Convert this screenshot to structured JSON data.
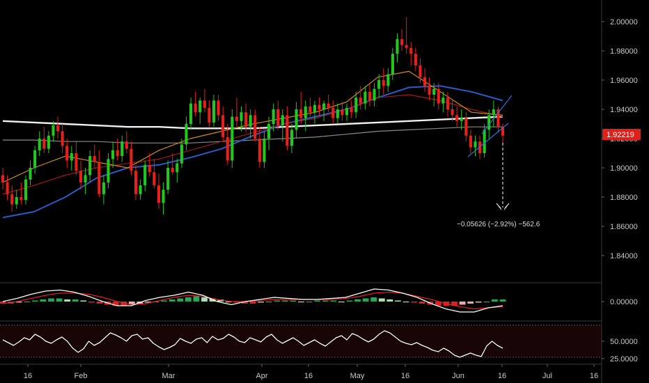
{
  "chart_data": [
    {
      "type": "candlestick",
      "panel": "price",
      "ylim": [
        1.82,
        2.01
      ],
      "y_ticks": [
        "2.00000",
        "1.98000",
        "1.96000",
        "1.94000",
        "1.92000",
        "1.90000",
        "1.88000",
        "1.86000",
        "1.84000"
      ],
      "x_ticks": [
        "16",
        "Feb",
        "Mar",
        "Apr",
        "16",
        "May",
        "16",
        "Jun",
        "16",
        "Jul",
        "16"
      ],
      "last_price": "1.92219",
      "annotation": "−0.05626 (−2.92%) −562.6",
      "candles": [
        [
          1.895,
          1.9,
          1.885,
          1.89
        ],
        [
          1.89,
          1.895,
          1.878,
          1.882
        ],
        [
          1.882,
          1.888,
          1.87,
          1.875
        ],
        [
          1.875,
          1.885,
          1.872,
          1.88
        ],
        [
          1.88,
          1.89,
          1.875,
          1.878
        ],
        [
          1.878,
          1.895,
          1.875,
          1.892
        ],
        [
          1.892,
          1.905,
          1.888,
          1.9
        ],
        [
          1.9,
          1.915,
          1.896,
          1.912
        ],
        [
          1.912,
          1.925,
          1.908,
          1.92
        ],
        [
          1.92,
          1.928,
          1.91,
          1.913
        ],
        [
          1.913,
          1.925,
          1.91,
          1.922
        ],
        [
          1.922,
          1.932,
          1.918,
          1.929
        ],
        [
          1.929,
          1.935,
          1.92,
          1.925
        ],
        [
          1.925,
          1.93,
          1.91,
          1.915
        ],
        [
          1.915,
          1.92,
          1.9,
          1.905
        ],
        [
          1.905,
          1.915,
          1.898,
          1.91
        ],
        [
          1.91,
          1.918,
          1.895,
          1.898
        ],
        [
          1.898,
          1.905,
          1.885,
          1.89
        ],
        [
          1.89,
          1.9,
          1.882,
          1.895
        ],
        [
          1.895,
          1.912,
          1.89,
          1.908
        ],
        [
          1.908,
          1.916,
          1.9,
          1.904
        ],
        [
          1.904,
          1.912,
          1.88,
          1.882
        ],
        [
          1.882,
          1.895,
          1.875,
          1.89
        ],
        [
          1.89,
          1.91,
          1.886,
          1.906
        ],
        [
          1.906,
          1.918,
          1.9,
          1.912
        ],
        [
          1.912,
          1.92,
          1.905,
          1.908
        ],
        [
          1.908,
          1.922,
          1.904,
          1.918
        ],
        [
          1.918,
          1.925,
          1.91,
          1.913
        ],
        [
          1.913,
          1.918,
          1.895,
          1.898
        ],
        [
          1.898,
          1.902,
          1.878,
          1.882
        ],
        [
          1.882,
          1.892,
          1.878,
          1.888
        ],
        [
          1.888,
          1.905,
          1.884,
          1.902
        ],
        [
          1.902,
          1.91,
          1.894,
          1.897
        ],
        [
          1.897,
          1.906,
          1.886,
          1.888
        ],
        [
          1.888,
          1.896,
          1.872,
          1.876
        ],
        [
          1.876,
          1.89,
          1.868,
          1.885
        ],
        [
          1.885,
          1.905,
          1.882,
          1.9
        ],
        [
          1.9,
          1.91,
          1.895,
          1.897
        ],
        [
          1.897,
          1.906,
          1.89,
          1.903
        ],
        [
          1.903,
          1.92,
          1.9,
          1.916
        ],
        [
          1.916,
          1.935,
          1.912,
          1.93
        ],
        [
          1.93,
          1.948,
          1.926,
          1.944
        ],
        [
          1.944,
          1.952,
          1.935,
          1.938
        ],
        [
          1.938,
          1.948,
          1.93,
          1.946
        ],
        [
          1.946,
          1.954,
          1.938,
          1.941
        ],
        [
          1.941,
          1.946,
          1.928,
          1.931
        ],
        [
          1.931,
          1.95,
          1.928,
          1.946
        ],
        [
          1.946,
          1.95,
          1.932,
          1.936
        ],
        [
          1.936,
          1.942,
          1.918,
          1.921
        ],
        [
          1.921,
          1.93,
          1.902,
          1.905
        ],
        [
          1.905,
          1.94,
          1.9,
          1.935
        ],
        [
          1.935,
          1.948,
          1.928,
          1.932
        ],
        [
          1.932,
          1.942,
          1.925,
          1.938
        ],
        [
          1.938,
          1.944,
          1.924,
          1.928
        ],
        [
          1.928,
          1.94,
          1.92,
          1.936
        ],
        [
          1.936,
          1.94,
          1.918,
          1.92
        ],
        [
          1.92,
          1.928,
          1.9,
          1.904
        ],
        [
          1.904,
          1.925,
          1.9,
          1.92
        ],
        [
          1.92,
          1.935,
          1.912,
          1.93
        ],
        [
          1.93,
          1.944,
          1.925,
          1.94
        ],
        [
          1.94,
          1.946,
          1.926,
          1.929
        ],
        [
          1.929,
          1.94,
          1.918,
          1.936
        ],
        [
          1.936,
          1.942,
          1.912,
          1.915
        ],
        [
          1.915,
          1.93,
          1.91,
          1.926
        ],
        [
          1.926,
          1.945,
          1.92,
          1.94
        ],
        [
          1.94,
          1.952,
          1.93,
          1.934
        ],
        [
          1.934,
          1.946,
          1.925,
          1.942
        ],
        [
          1.942,
          1.948,
          1.935,
          1.938
        ],
        [
          1.938,
          1.946,
          1.93,
          1.943
        ],
        [
          1.943,
          1.948,
          1.936,
          1.94
        ],
        [
          1.94,
          1.946,
          1.932,
          1.944
        ],
        [
          1.944,
          1.95,
          1.938,
          1.941
        ],
        [
          1.941,
          1.946,
          1.93,
          1.934
        ],
        [
          1.934,
          1.944,
          1.93,
          1.94
        ],
        [
          1.94,
          1.945,
          1.932,
          1.936
        ],
        [
          1.936,
          1.944,
          1.932,
          1.941
        ],
        [
          1.941,
          1.946,
          1.934,
          1.938
        ],
        [
          1.938,
          1.952,
          1.934,
          1.948
        ],
        [
          1.948,
          1.956,
          1.94,
          1.944
        ],
        [
          1.944,
          1.956,
          1.94,
          1.952
        ],
        [
          1.952,
          1.958,
          1.942,
          1.946
        ],
        [
          1.946,
          1.958,
          1.942,
          1.954
        ],
        [
          1.954,
          1.964,
          1.948,
          1.96
        ],
        [
          1.96,
          1.968,
          1.95,
          1.956
        ],
        [
          1.956,
          1.968,
          1.952,
          1.964
        ],
        [
          1.964,
          1.982,
          1.96,
          1.978
        ],
        [
          1.978,
          1.992,
          1.972,
          1.988
        ],
        [
          1.988,
          1.995,
          1.98,
          1.984
        ],
        [
          1.984,
          2.003,
          1.978,
          1.982
        ],
        [
          1.982,
          1.986,
          1.97,
          1.978
        ],
        [
          1.978,
          1.982,
          1.966,
          1.97
        ],
        [
          1.97,
          1.975,
          1.958,
          1.962
        ],
        [
          1.962,
          1.968,
          1.952,
          1.956
        ],
        [
          1.956,
          1.962,
          1.946,
          1.95
        ],
        [
          1.95,
          1.958,
          1.942,
          1.954
        ],
        [
          1.954,
          1.958,
          1.94,
          1.944
        ],
        [
          1.944,
          1.952,
          1.938,
          1.948
        ],
        [
          1.948,
          1.952,
          1.935,
          1.94
        ],
        [
          1.94,
          1.946,
          1.932,
          1.936
        ],
        [
          1.936,
          1.942,
          1.928,
          1.932
        ],
        [
          1.932,
          1.94,
          1.926,
          1.934
        ],
        [
          1.934,
          1.938,
          1.918,
          1.922
        ],
        [
          1.922,
          1.926,
          1.91,
          1.914
        ],
        [
          1.914,
          1.922,
          1.908,
          1.918
        ],
        [
          1.918,
          1.922,
          1.906,
          1.91
        ],
        [
          1.91,
          1.93,
          1.907,
          1.926
        ],
        [
          1.926,
          1.94,
          1.92,
          1.936
        ],
        [
          1.936,
          1.946,
          1.928,
          1.94
        ],
        [
          1.94,
          1.942,
          1.924,
          1.928
        ],
        [
          1.928,
          1.93,
          1.915,
          1.922
        ]
      ],
      "series": [
        {
          "name": "",
          "color": "#f0f0f0",
          "values": [
            1.932,
            1.931,
            1.93,
            1.929,
            1.928,
            1.928,
            1.927,
            1.927,
            1.927,
            1.928,
            1.929,
            1.93,
            1.931,
            1.932,
            1.933,
            1.934,
            1.935
          ]
        },
        {
          "name": "",
          "color": "#8a8a8a",
          "values": [
            1.919,
            1.919,
            1.918,
            1.918,
            1.917,
            1.917,
            1.917,
            1.918,
            1.919,
            1.92,
            1.921,
            1.923,
            1.925,
            1.926,
            1.927,
            1.928,
            1.928
          ]
        },
        {
          "name": "",
          "color": "#2a5cc8",
          "values": [
            1.866,
            1.87,
            1.88,
            1.893,
            1.9,
            1.902,
            1.907,
            1.913,
            1.922,
            1.93,
            1.935,
            1.94,
            1.948,
            1.955,
            1.956,
            1.952,
            1.946
          ]
        },
        {
          "name": "",
          "color": "#a31818",
          "values": [
            1.882,
            1.888,
            1.895,
            1.9,
            1.903,
            1.906,
            1.912,
            1.918,
            1.924,
            1.93,
            1.934,
            1.94,
            1.948,
            1.95,
            1.946,
            1.94,
            1.935
          ]
        },
        {
          "name": "",
          "color": "#d08a1a",
          "values": [
            1.89,
            1.9,
            1.908,
            1.904,
            1.9,
            1.912,
            1.92,
            1.925,
            1.93,
            1.934,
            1.938,
            1.945,
            1.962,
            1.966,
            1.952,
            1.938,
            1.936
          ]
        }
      ]
    },
    {
      "type": "histogram+line",
      "panel": "macd",
      "y_ticks": [
        "0.00000"
      ],
      "histogram": [
        -0.002,
        -0.002,
        -0.001,
        0.0,
        0.001,
        0.002,
        0.003,
        0.003,
        0.002,
        0.002,
        0.001,
        -0.001,
        -0.002,
        -0.003,
        -0.004,
        -0.004,
        -0.003,
        -0.002,
        -0.001,
        0.0,
        0.001,
        0.002,
        0.003,
        0.004,
        0.005,
        0.004,
        0.003,
        0.002,
        0.0,
        -0.001,
        -0.002,
        -0.002,
        -0.001,
        0.0,
        0.001,
        0.001,
        0.001,
        0.0,
        0.0,
        0.001,
        0.001,
        0.001,
        0.0,
        0.001,
        0.002,
        0.003,
        0.004,
        0.003,
        0.002,
        0.001,
        0.0,
        -0.001,
        -0.002,
        -0.003,
        -0.004,
        -0.004,
        -0.004,
        -0.003,
        -0.002,
        -0.001,
        0.0,
        0.002,
        0.002
      ],
      "macd_line": [
        0.0,
        0.003,
        0.007,
        0.01,
        0.011,
        0.009,
        0.005,
        0.0,
        -0.004,
        -0.004,
        0.001,
        0.004,
        0.006,
        0.009,
        0.006,
        0.0,
        -0.003,
        0.0,
        0.002,
        0.004,
        0.003,
        0.002,
        0.002,
        0.003,
        0.004,
        0.008,
        0.012,
        0.011,
        0.008,
        0.004,
        -0.002,
        -0.007,
        -0.01,
        -0.01,
        -0.006,
        -0.004
      ],
      "signal_line": [
        -0.002,
        0.0,
        0.003,
        0.006,
        0.008,
        0.008,
        0.007,
        0.004,
        0.0,
        -0.003,
        -0.002,
        0.001,
        0.004,
        0.006,
        0.005,
        0.002,
        0.0,
        0.0,
        0.001,
        0.002,
        0.002,
        0.002,
        0.002,
        0.002,
        0.003,
        0.005,
        0.008,
        0.009,
        0.008,
        0.005,
        0.002,
        -0.002,
        -0.005,
        -0.007,
        -0.006,
        -0.005
      ]
    },
    {
      "type": "line",
      "panel": "rsi",
      "ylim": [
        20,
        80
      ],
      "y_ticks": [
        "50.0000",
        "25.0000"
      ],
      "values": [
        52,
        48,
        44,
        49,
        55,
        52,
        60,
        56,
        50,
        47,
        52,
        56,
        50,
        40,
        34,
        39,
        50,
        44,
        48,
        55,
        62,
        59,
        55,
        50,
        58,
        60,
        53,
        55,
        47,
        42,
        38,
        41,
        45,
        54,
        50,
        47,
        53,
        55,
        48,
        57,
        52,
        54,
        60,
        56,
        50,
        48,
        55,
        52,
        49,
        56,
        60,
        52,
        47,
        51,
        55,
        50,
        44,
        48,
        52,
        47,
        43,
        49,
        55,
        58,
        52,
        61,
        58,
        53,
        49,
        53,
        60,
        65,
        62,
        56,
        50,
        47,
        45,
        48,
        44,
        41,
        37,
        35,
        40,
        36,
        30,
        27,
        30,
        33,
        30,
        28,
        43,
        50,
        44,
        40
      ]
    }
  ]
}
